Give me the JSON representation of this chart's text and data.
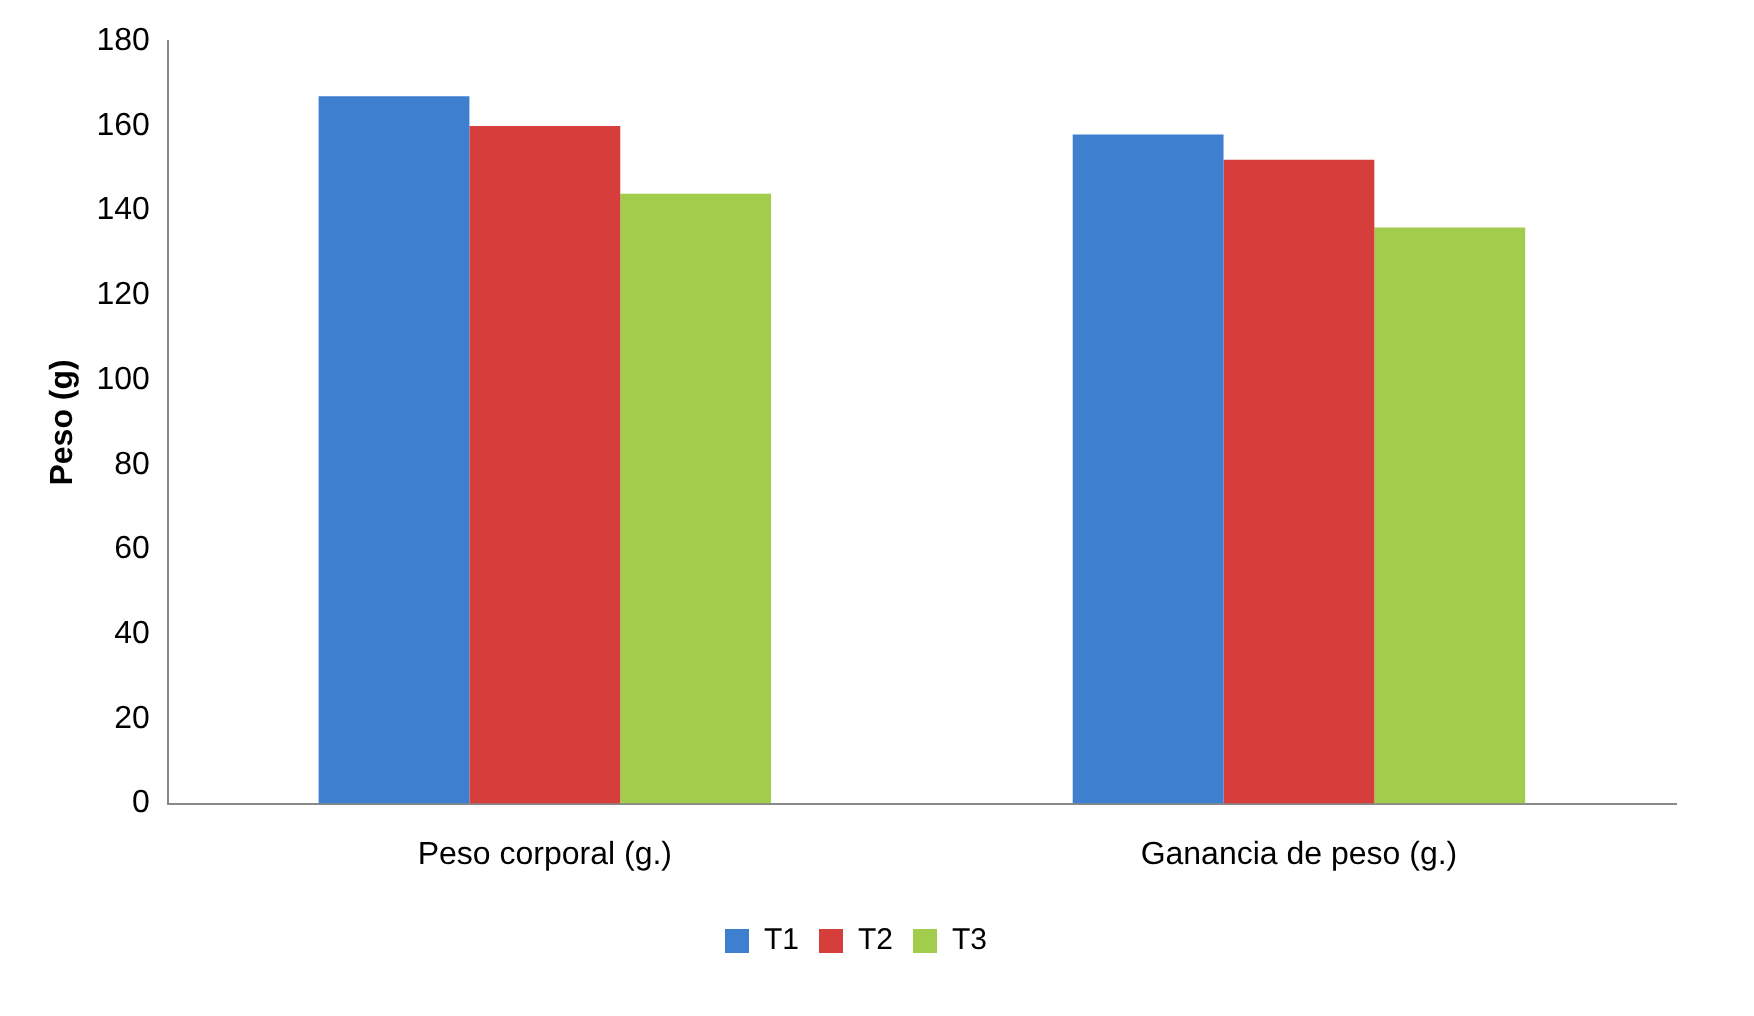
{
  "chart_data": {
    "type": "bar",
    "ylabel": "Peso (g)",
    "categories": [
      "Peso corporal (g.)",
      "Ganancia de peso (g.)"
    ],
    "series": [
      {
        "name": "T1",
        "color": "#3f7fcf",
        "values": [
          167,
          158
        ]
      },
      {
        "name": "T2",
        "color": "#d63e3c",
        "values": [
          160,
          152
        ]
      },
      {
        "name": "T3",
        "color": "#a2cc4b",
        "values": [
          144,
          136
        ]
      }
    ],
    "ylim": [
      0,
      180
    ],
    "yticks": [
      0,
      20,
      40,
      60,
      80,
      100,
      120,
      140,
      160,
      180
    ],
    "grid": false,
    "legend": "bottom"
  }
}
